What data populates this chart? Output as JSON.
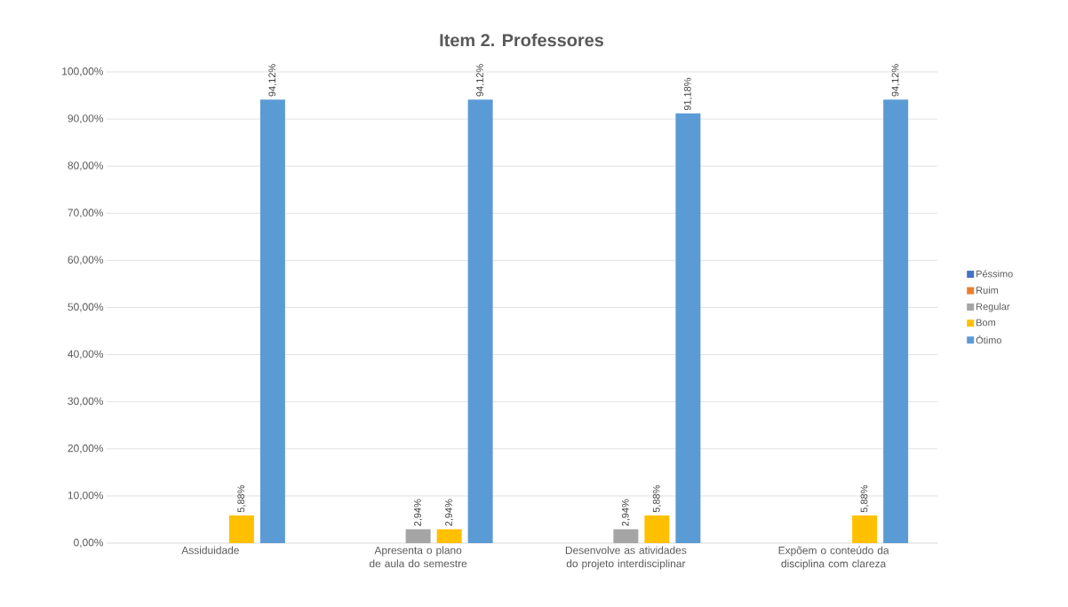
{
  "chart_data": {
    "type": "bar",
    "title": "Item 2. Professores",
    "categories": [
      "Assiduidade",
      "Apresenta o plano de aula do semestre",
      "Desenvolve as atividades do projeto interdisciplinar",
      "Expõem o conteúdo da disciplina com clareza"
    ],
    "series": [
      {
        "name": "Péssimo",
        "color": "#4472c4",
        "values": [
          0,
          0,
          0,
          0
        ],
        "value_labels": [
          null,
          null,
          null,
          null
        ]
      },
      {
        "name": "Ruim",
        "color": "#ed7d31",
        "values": [
          0,
          0,
          0,
          0
        ],
        "value_labels": [
          null,
          null,
          null,
          null
        ]
      },
      {
        "name": "Regular",
        "color": "#a5a5a5",
        "values": [
          0,
          2.94,
          2.94,
          0
        ],
        "value_labels": [
          null,
          "2,94%",
          "2,94%",
          null
        ]
      },
      {
        "name": "Bom",
        "color": "#ffc000",
        "values": [
          5.88,
          2.94,
          5.88,
          5.88
        ],
        "value_labels": [
          "5,88%",
          "2,94%",
          "5,88%",
          "5,88%"
        ]
      },
      {
        "name": "Ótimo",
        "color": "#5b9bd5",
        "values": [
          94.12,
          94.12,
          91.18,
          94.12
        ],
        "value_labels": [
          "94,12%",
          "94,12%",
          "91,18%",
          "94,12%"
        ]
      }
    ],
    "ylim": [
      0,
      100
    ],
    "yticks": [
      {
        "value": 0,
        "label": "0,00%"
      },
      {
        "value": 10,
        "label": "10,00%"
      },
      {
        "value": 20,
        "label": "20,00%"
      },
      {
        "value": 30,
        "label": "30,00%"
      },
      {
        "value": 40,
        "label": "40,00%"
      },
      {
        "value": 50,
        "label": "50,00%"
      },
      {
        "value": 60,
        "label": "60,00%"
      },
      {
        "value": 70,
        "label": "70,00%"
      },
      {
        "value": 80,
        "label": "80,00%"
      },
      {
        "value": 90,
        "label": "90,00%"
      },
      {
        "value": 100,
        "label": "100,00%"
      }
    ],
    "grid": "y",
    "legend": "right"
  }
}
